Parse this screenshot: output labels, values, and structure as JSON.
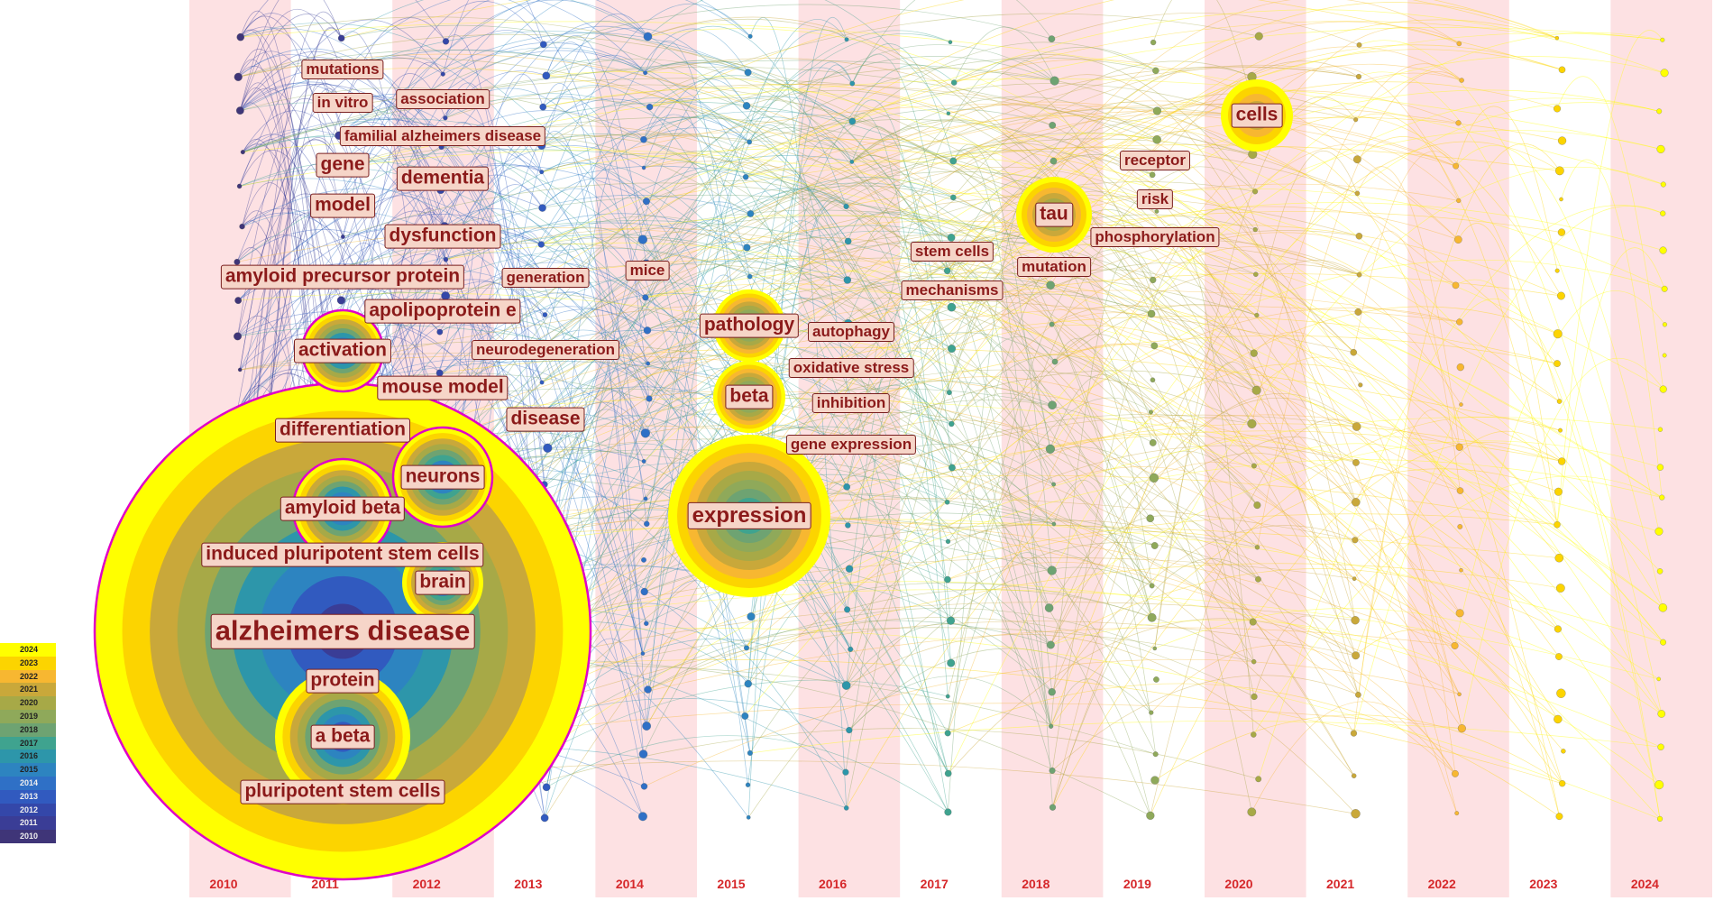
{
  "legend": [
    "2024",
    "2023",
    "2022",
    "2021",
    "2020",
    "2019",
    "2018",
    "2017",
    "2016",
    "2015",
    "2014",
    "2013",
    "2012",
    "2011",
    "2010"
  ],
  "legend_colors": [
    "#ffff00",
    "#fcd400",
    "#f7b731",
    "#c9a83a",
    "#a7a947",
    "#8fa95a",
    "#6ea372",
    "#3fa38f",
    "#2d96aa",
    "#2d84c0",
    "#2f70c6",
    "#315abf",
    "#3447a9",
    "#3a3d96",
    "#3f3578"
  ],
  "years": [
    "2010",
    "2011",
    "2012",
    "2013",
    "2014",
    "2015",
    "2016",
    "2017",
    "2018",
    "2019",
    "2020",
    "2021",
    "2022",
    "2023",
    "2024"
  ],
  "keywords": [
    {
      "text": "mutations",
      "year": "2011",
      "size": 1
    },
    {
      "text": "in vitro",
      "year": "2011",
      "size": 1
    },
    {
      "text": "gene",
      "year": "2011",
      "size": 2
    },
    {
      "text": "model",
      "year": "2011",
      "size": 2
    },
    {
      "text": "amyloid precursor protein",
      "year": "2011",
      "size": 2
    },
    {
      "text": "activation",
      "year": "2011",
      "size": 2
    },
    {
      "text": "differentiation",
      "year": "2011",
      "size": 2
    },
    {
      "text": "amyloid beta",
      "year": "2011",
      "size": 2
    },
    {
      "text": "induced pluripotent stem cells",
      "year": "2011",
      "size": 2
    },
    {
      "text": "alzheimers disease",
      "year": "2011",
      "size": 4
    },
    {
      "text": "protein",
      "year": "2011",
      "size": 2
    },
    {
      "text": "a beta",
      "year": "2011",
      "size": 2
    },
    {
      "text": "pluripotent stem cells",
      "year": "2011",
      "size": 2
    },
    {
      "text": "association",
      "year": "2012",
      "size": 1
    },
    {
      "text": "familial alzheimers disease",
      "year": "2012",
      "size": 1
    },
    {
      "text": "dementia",
      "year": "2012",
      "size": 2
    },
    {
      "text": "dysfunction",
      "year": "2012",
      "size": 2
    },
    {
      "text": "apolipoprotein e",
      "year": "2012",
      "size": 2
    },
    {
      "text": "mouse model",
      "year": "2012",
      "size": 2
    },
    {
      "text": "neurons",
      "year": "2012",
      "size": 2
    },
    {
      "text": "brain",
      "year": "2012",
      "size": 2
    },
    {
      "text": "generation",
      "year": "2013",
      "size": 1
    },
    {
      "text": "neurodegeneration",
      "year": "2013",
      "size": 1
    },
    {
      "text": "disease",
      "year": "2013",
      "size": 2
    },
    {
      "text": "mice",
      "year": "2014",
      "size": 1
    },
    {
      "text": "pathology",
      "year": "2015",
      "size": 2
    },
    {
      "text": "beta",
      "year": "2015",
      "size": 2
    },
    {
      "text": "expression",
      "year": "2015",
      "size": 3
    },
    {
      "text": "autophagy",
      "year": "2016",
      "size": 1
    },
    {
      "text": "oxidative stress",
      "year": "2016",
      "size": 1
    },
    {
      "text": "inhibition",
      "year": "2016",
      "size": 1
    },
    {
      "text": "gene expression",
      "year": "2016",
      "size": 1
    },
    {
      "text": "stem cells",
      "year": "2017",
      "size": 1
    },
    {
      "text": "mechanisms",
      "year": "2017",
      "size": 1
    },
    {
      "text": "tau",
      "year": "2018",
      "size": 2
    },
    {
      "text": "mutation",
      "year": "2018",
      "size": 1
    },
    {
      "text": "receptor",
      "year": "2019",
      "size": 1
    },
    {
      "text": "risk",
      "year": "2019",
      "size": 1
    },
    {
      "text": "phosphorylation",
      "year": "2019",
      "size": 1
    },
    {
      "text": "cells",
      "year": "2020",
      "size": 2
    }
  ]
}
